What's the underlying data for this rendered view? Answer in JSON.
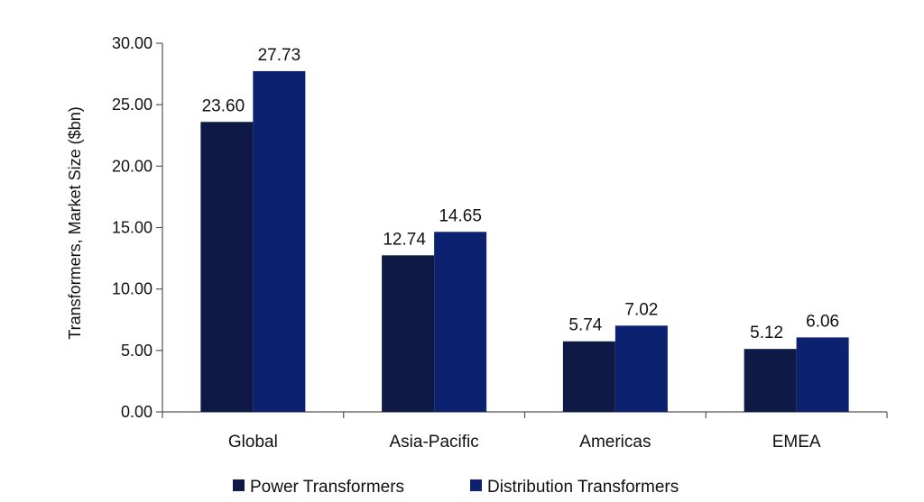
{
  "chart_data": {
    "type": "bar",
    "categories": [
      "Global",
      "Asia-Pacific",
      "Americas",
      "EMEA"
    ],
    "series": [
      {
        "name": "Power Transformers",
        "values": [
          23.6,
          12.74,
          5.74,
          5.12
        ],
        "color": "#0e1a45"
      },
      {
        "name": "Distribution Transformers",
        "values": [
          27.73,
          14.65,
          7.02,
          6.06
        ],
        "color": "#0c2270"
      }
    ],
    "title": "",
    "xlabel": "",
    "ylabel": "Transformers, Market Size ($bn)",
    "ylim": [
      0,
      30
    ],
    "yticks": [
      "0.00",
      "5.00",
      "10.00",
      "15.00",
      "20.00",
      "25.00",
      "30.00"
    ],
    "data_labels": [
      [
        "23.60",
        "12.74",
        "5.74",
        "5.12"
      ],
      [
        "27.73",
        "14.65",
        "7.02",
        "6.06"
      ]
    ],
    "grid": false,
    "legend_position": "bottom"
  }
}
